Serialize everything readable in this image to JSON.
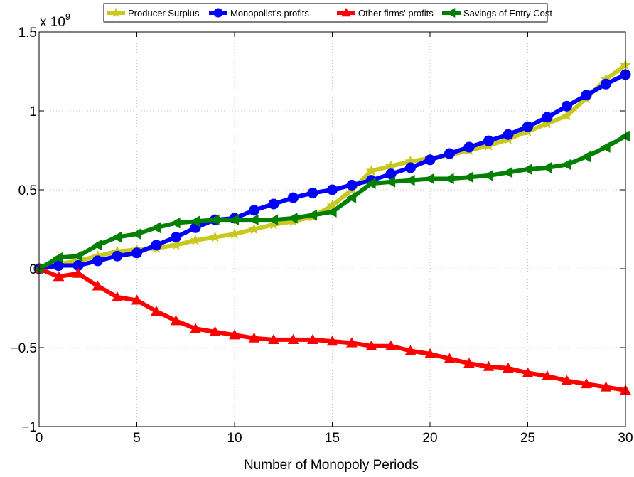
{
  "chart_data": {
    "type": "line",
    "xlabel": "Number of Monopoly Periods",
    "ylabel": "",
    "y_multiplier_base": "x 10",
    "y_multiplier_exp": "9",
    "xlim": [
      0,
      30
    ],
    "ylim": [
      -1,
      1.5
    ],
    "xticks": [
      0,
      5,
      10,
      15,
      20,
      25,
      30
    ],
    "xtick_labels": [
      "0",
      "5",
      "10",
      "15",
      "20",
      "25",
      "30"
    ],
    "yticks": [
      -1,
      -0.5,
      0,
      0.5,
      1,
      1.5
    ],
    "ytick_labels": [
      "−1",
      "−0.5",
      "0",
      "0.5",
      "1",
      "1.5"
    ],
    "grid": true,
    "legend_position": "top",
    "x": [
      0,
      1,
      2,
      3,
      4,
      5,
      6,
      7,
      8,
      9,
      10,
      11,
      12,
      13,
      14,
      15,
      16,
      17,
      18,
      19,
      20,
      21,
      22,
      23,
      24,
      25,
      26,
      27,
      28,
      29,
      30
    ],
    "series": [
      {
        "name": "Producer Surplus",
        "color": "#c8c81e",
        "marker": "star",
        "values": [
          0,
          0.03,
          0.05,
          0.08,
          0.11,
          0.12,
          0.13,
          0.15,
          0.18,
          0.2,
          0.22,
          0.25,
          0.28,
          0.3,
          0.33,
          0.4,
          0.5,
          0.62,
          0.65,
          0.68,
          0.7,
          0.72,
          0.75,
          0.78,
          0.82,
          0.87,
          0.92,
          0.97,
          1.08,
          1.2,
          1.29
        ]
      },
      {
        "name": "Monopolist's profits",
        "color": "#0000ff",
        "marker": "circle",
        "values": [
          0,
          0.02,
          0.02,
          0.05,
          0.08,
          0.1,
          0.15,
          0.2,
          0.26,
          0.31,
          0.32,
          0.37,
          0.41,
          0.45,
          0.48,
          0.5,
          0.53,
          0.56,
          0.6,
          0.64,
          0.69,
          0.73,
          0.77,
          0.81,
          0.85,
          0.9,
          0.96,
          1.03,
          1.1,
          1.17,
          1.23
        ]
      },
      {
        "name": "Other firms' profits",
        "color": "#ff0000",
        "marker": "triangle-up",
        "values": [
          0,
          -0.05,
          -0.03,
          -0.11,
          -0.18,
          -0.2,
          -0.27,
          -0.33,
          -0.38,
          -0.4,
          -0.42,
          -0.44,
          -0.45,
          -0.45,
          -0.45,
          -0.46,
          -0.47,
          -0.49,
          -0.49,
          -0.52,
          -0.54,
          -0.57,
          -0.6,
          -0.62,
          -0.63,
          -0.66,
          -0.68,
          -0.71,
          -0.73,
          -0.75,
          -0.77
        ]
      },
      {
        "name": "Savings of Entry Cost",
        "color": "#007f00",
        "marker": "triangle-left",
        "values": [
          0,
          0.07,
          0.08,
          0.15,
          0.2,
          0.22,
          0.26,
          0.29,
          0.3,
          0.31,
          0.31,
          0.31,
          0.31,
          0.32,
          0.34,
          0.36,
          0.45,
          0.54,
          0.55,
          0.56,
          0.57,
          0.57,
          0.58,
          0.59,
          0.61,
          0.63,
          0.64,
          0.66,
          0.71,
          0.77,
          0.84
        ]
      }
    ]
  }
}
